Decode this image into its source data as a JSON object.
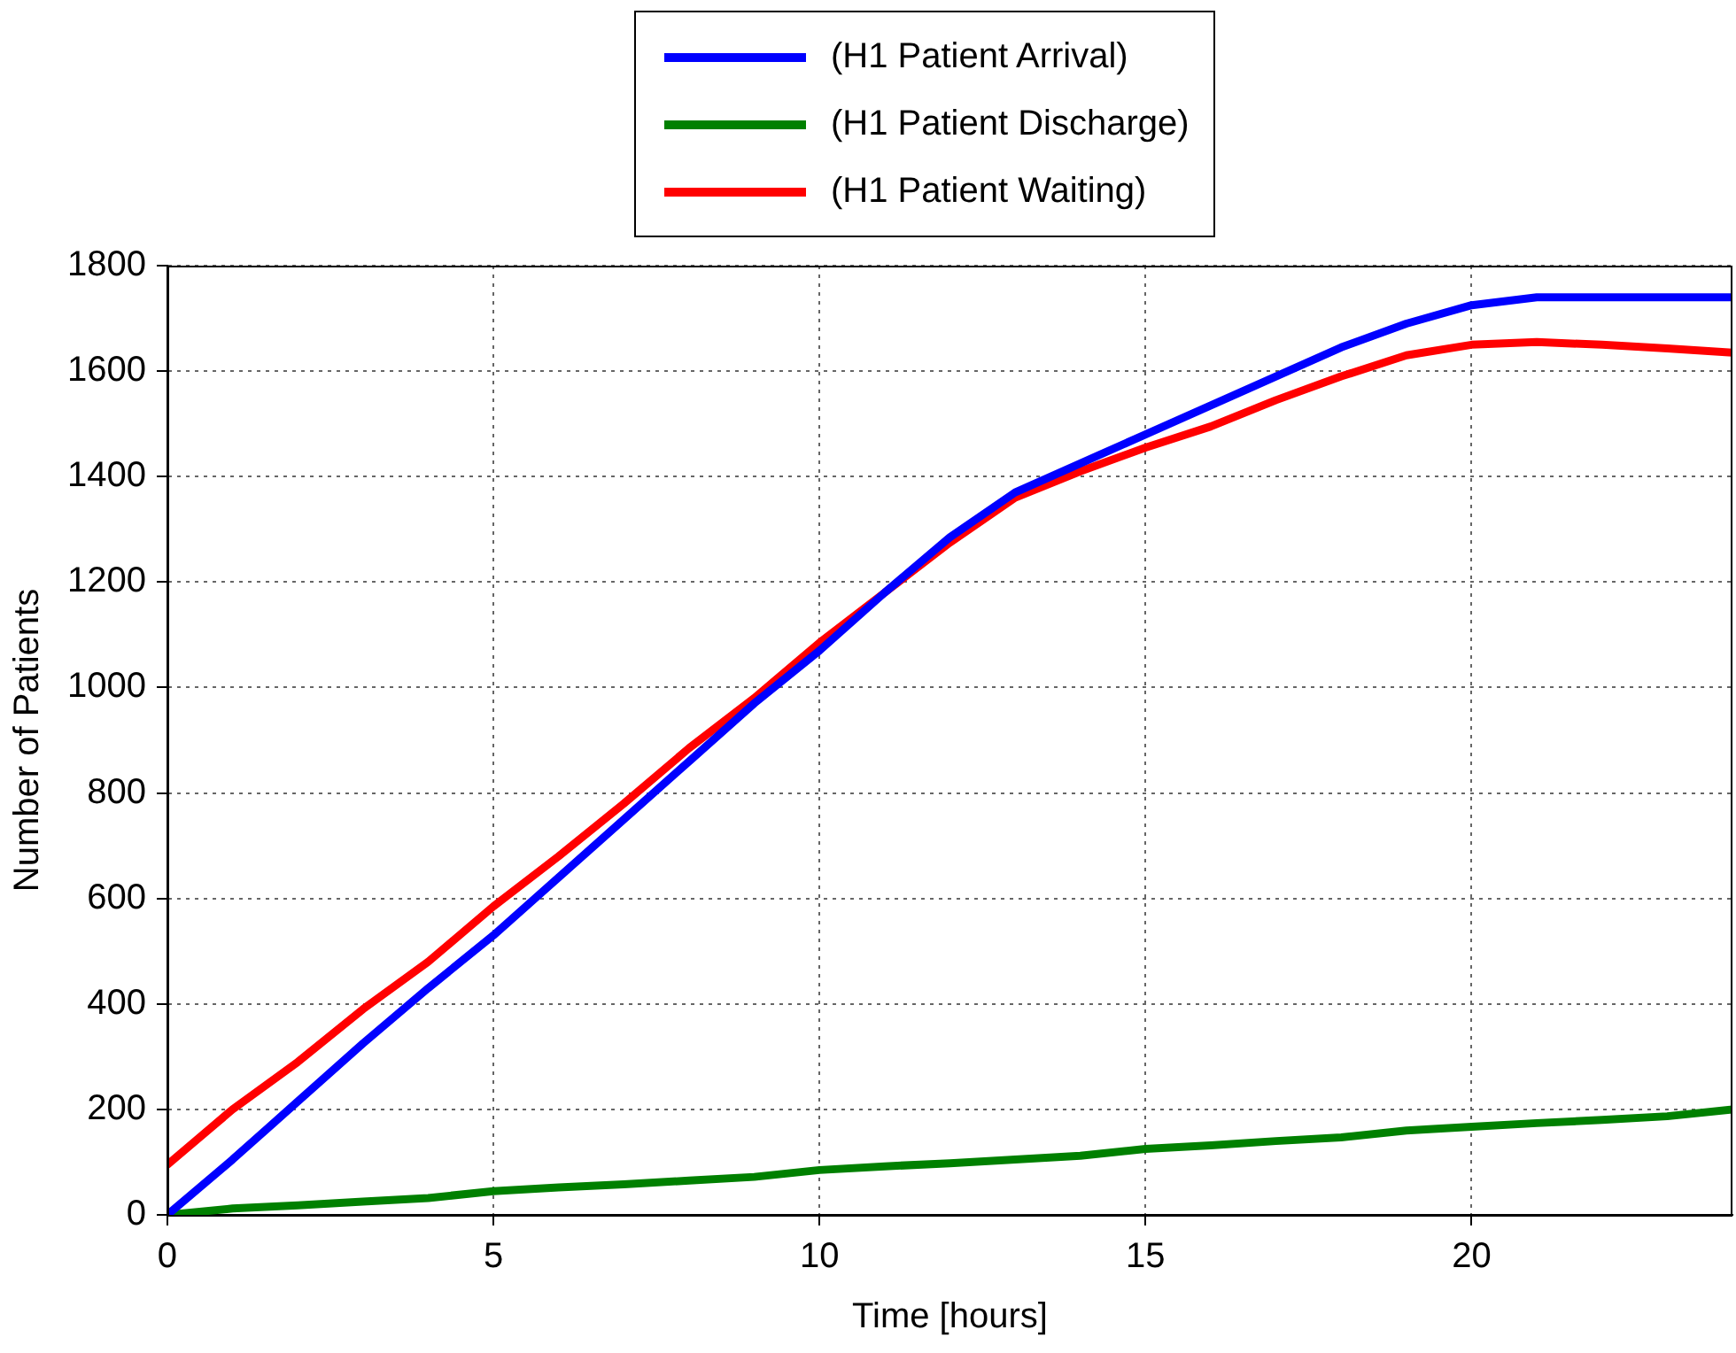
{
  "chart_data": {
    "type": "line",
    "xlabel": "Time [hours]",
    "ylabel": "Number of Patients",
    "x": [
      0,
      1,
      2,
      3,
      4,
      5,
      6,
      7,
      8,
      9,
      10,
      11,
      12,
      13,
      14,
      15,
      16,
      17,
      18,
      19,
      20,
      21,
      22,
      23,
      24
    ],
    "series": [
      {
        "name": "(H1 Patient Arrival)",
        "color": "#0000ff",
        "values": [
          0,
          105,
          215,
          325,
          430,
          530,
          640,
          750,
          860,
          970,
          1070,
          1180,
          1285,
          1370,
          1425,
          1480,
          1535,
          1590,
          1645,
          1690,
          1725,
          1740,
          1740,
          1740,
          1740
        ]
      },
      {
        "name": "(H1 Patient Discharge)",
        "color": "#008000",
        "values": [
          0,
          12,
          18,
          25,
          32,
          45,
          52,
          58,
          65,
          72,
          85,
          92,
          98,
          105,
          112,
          125,
          132,
          140,
          147,
          160,
          167,
          174,
          180,
          187,
          200
        ]
      },
      {
        "name": "(H1 Patient Waiting)",
        "color": "#ff0000",
        "values": [
          95,
          200,
          290,
          390,
          480,
          585,
          680,
          780,
          885,
          980,
          1085,
          1180,
          1275,
          1360,
          1410,
          1455,
          1495,
          1545,
          1590,
          1630,
          1650,
          1655,
          1650,
          1643,
          1635
        ]
      }
    ],
    "xlim": [
      0,
      24
    ],
    "xticks": [
      0,
      5,
      10,
      15,
      20
    ],
    "ylim": [
      0,
      1800
    ],
    "yticks": [
      0,
      200,
      400,
      600,
      800,
      1000,
      1200,
      1400,
      1600,
      1800
    ],
    "grid": true,
    "legend": "top",
    "marker": "none",
    "line_style": "solid"
  }
}
